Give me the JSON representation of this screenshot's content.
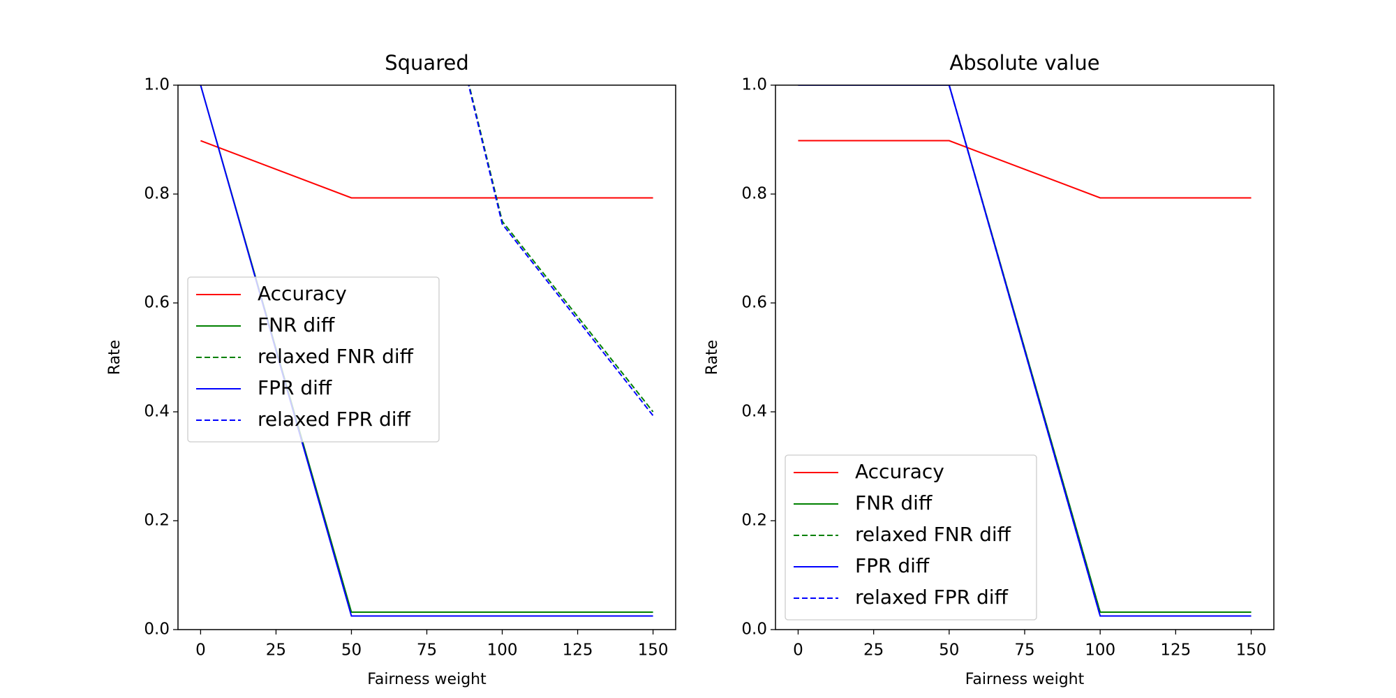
{
  "chart_data": [
    {
      "type": "line",
      "title": "Squared",
      "xlabel": "Fairness weight",
      "ylabel": "Rate",
      "x": [
        0,
        50,
        100,
        150
      ],
      "series": [
        {
          "name": "Accuracy",
          "color": "#ff0000",
          "dash": false,
          "values": [
            0.898,
            0.793,
            0.793,
            0.793
          ]
        },
        {
          "name": "FNR diff",
          "color": "#008000",
          "dash": false,
          "values": [
            1.0,
            0.032,
            0.032,
            0.032
          ]
        },
        {
          "name": "relaxed FNR diff",
          "color": "#008000",
          "dash": true,
          "values": [
            null,
            1.89,
            0.75,
            0.4
          ]
        },
        {
          "name": "FPR diff",
          "color": "#0000ff",
          "dash": false,
          "values": [
            1.0,
            0.025,
            0.025,
            0.025
          ]
        },
        {
          "name": "relaxed FPR diff",
          "color": "#0000ff",
          "dash": true,
          "values": [
            null,
            1.89,
            0.745,
            0.393
          ]
        }
      ],
      "xlim": [
        -7.5,
        157.5
      ],
      "xticks": [
        0,
        25,
        50,
        75,
        100,
        125,
        150
      ],
      "ylim": [
        0,
        1
      ],
      "yticks": [
        {
          "value": 0,
          "label": "0.0"
        },
        {
          "value": 0.2,
          "label": "0.2"
        },
        {
          "value": 0.4,
          "label": "0.4"
        },
        {
          "value": 0.6,
          "label": "0.6"
        },
        {
          "value": 0.8,
          "label": "0.8"
        },
        {
          "value": 1,
          "label": "1.0"
        }
      ],
      "legend": "center left"
    },
    {
      "type": "line",
      "title": "Absolute value",
      "xlabel": "Fairness weight",
      "ylabel": "Rate",
      "x": [
        0,
        50,
        100,
        150
      ],
      "series": [
        {
          "name": "Accuracy",
          "color": "#ff0000",
          "dash": false,
          "values": [
            0.898,
            0.898,
            0.793,
            0.793
          ]
        },
        {
          "name": "FNR diff",
          "color": "#008000",
          "dash": false,
          "values": [
            1.0,
            1.0,
            0.032,
            0.032
          ]
        },
        {
          "name": "relaxed FNR diff",
          "color": "#008000",
          "dash": true,
          "values": [
            1.0,
            1.0,
            0.032,
            0.032
          ]
        },
        {
          "name": "FPR diff",
          "color": "#0000ff",
          "dash": false,
          "values": [
            1.0,
            1.0,
            0.025,
            0.025
          ]
        },
        {
          "name": "relaxed FPR diff",
          "color": "#0000ff",
          "dash": true,
          "values": [
            1.0,
            1.0,
            0.025,
            0.025
          ]
        }
      ],
      "xlim": [
        -7.5,
        157.5
      ],
      "xticks": [
        0,
        25,
        50,
        75,
        100,
        125,
        150
      ],
      "ylim": [
        0,
        1
      ],
      "yticks": [
        {
          "value": 0,
          "label": "0.0"
        },
        {
          "value": 0.2,
          "label": "0.2"
        },
        {
          "value": 0.4,
          "label": "0.4"
        },
        {
          "value": 0.6,
          "label": "0.6"
        },
        {
          "value": 0.8,
          "label": "0.8"
        },
        {
          "value": 1,
          "label": "1.0"
        }
      ],
      "legend": "lower left"
    }
  ]
}
